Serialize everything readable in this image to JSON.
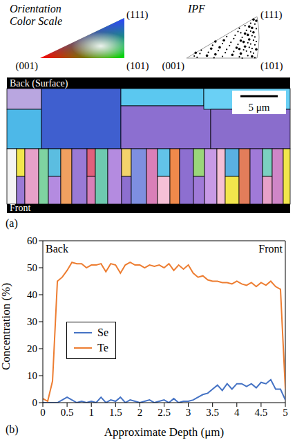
{
  "figure_a": {
    "orientation_color_scale": {
      "title_lines": [
        "Orientation",
        "Color Scale"
      ],
      "corners": {
        "left": "(001)",
        "right": "(101)",
        "top": "(111)"
      }
    },
    "ipf": {
      "title": "IPF",
      "corners": {
        "left": "(001)",
        "right": "(101)",
        "top": "(111)"
      }
    },
    "map": {
      "top_label": "Back (Surface)",
      "bottom_label": "Front",
      "scale_bar": "5 μm"
    },
    "panel_label": "(a)"
  },
  "chart_data": {
    "type": "line",
    "panel_label": "(b)",
    "xlabel": "Approximate Depth (μm)",
    "ylabel": "Concentration (%)",
    "annotations": [
      "Back",
      "Front"
    ],
    "legend": "left",
    "grid": false,
    "x": [
      0,
      0.1,
      0.2,
      0.3,
      0.4,
      0.5,
      0.6,
      0.7,
      0.8,
      0.9,
      1.0,
      1.1,
      1.2,
      1.3,
      1.4,
      1.5,
      1.6,
      1.7,
      1.8,
      1.9,
      2.0,
      2.1,
      2.2,
      2.3,
      2.4,
      2.5,
      2.6,
      2.7,
      2.8,
      2.9,
      3.0,
      3.1,
      3.2,
      3.3,
      3.4,
      3.5,
      3.6,
      3.7,
      3.8,
      3.9,
      4.0,
      4.1,
      4.2,
      4.3,
      4.4,
      4.5,
      4.6,
      4.7,
      4.8,
      4.9,
      5.0
    ],
    "series": [
      {
        "name": "Se",
        "color": "#4472c4",
        "values": [
          0,
          0,
          0,
          0,
          1,
          2,
          1,
          0,
          0.5,
          0,
          0.5,
          0,
          2,
          0,
          1,
          0.5,
          2,
          0,
          1,
          0.5,
          0,
          0.5,
          1,
          0,
          0.5,
          1,
          0,
          1.5,
          0,
          0.5,
          0.5,
          1,
          2,
          3,
          3.5,
          5,
          6.5,
          4.5,
          7,
          5,
          7,
          7,
          6,
          7,
          5.5,
          7.5,
          7,
          8.5,
          5,
          5,
          1
        ]
      },
      {
        "name": "Te",
        "color": "#ed7d31",
        "values": [
          1.5,
          0.5,
          8,
          45,
          46.5,
          49,
          52,
          51.5,
          51.5,
          50,
          51,
          51,
          51.5,
          48.5,
          51.5,
          51,
          48,
          51,
          52,
          51,
          51,
          50,
          51,
          50.5,
          51,
          50,
          51.5,
          49,
          51,
          49.5,
          51,
          48,
          46.5,
          47,
          45.5,
          45,
          45,
          44.5,
          44.5,
          44,
          45,
          44,
          43.5,
          44.5,
          43,
          44.5,
          43.5,
          45,
          43,
          42,
          5
        ]
      }
    ],
    "xlim": [
      0,
      5
    ],
    "xticks": [
      0,
      0.5,
      1,
      1.5,
      2,
      2.5,
      3,
      3.5,
      4,
      4.5,
      5
    ],
    "ylim": [
      0,
      60
    ],
    "yticks": [
      0,
      10,
      20,
      30,
      40,
      50,
      60
    ]
  }
}
